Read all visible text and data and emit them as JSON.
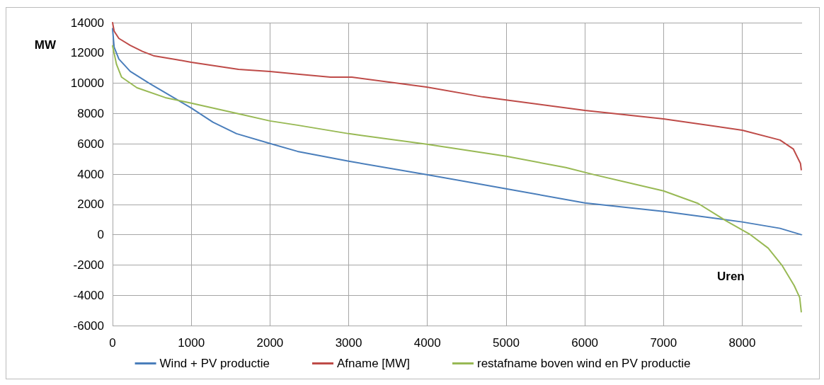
{
  "chart_data": {
    "type": "line",
    "xlabel": "Uren",
    "ylabel": "MW",
    "xlim": [
      0,
      8760
    ],
    "xticks": [
      0,
      1000,
      2000,
      3000,
      4000,
      5000,
      6000,
      7000,
      8000
    ],
    "ylim": [
      -6000,
      14000
    ],
    "yticks": [
      -6000,
      -4000,
      -2000,
      0,
      2000,
      4000,
      6000,
      8000,
      10000,
      12000,
      14000
    ],
    "grid": true,
    "legend": "bottom",
    "marker": "none",
    "line_style": "solid",
    "series": [
      {
        "name": "Wind + PV productie",
        "color": "#4a7ebb",
        "x": [
          0,
          20,
          80,
          225,
          465,
          825,
          1000,
          1275,
          1575,
          2000,
          2350,
          3000,
          3990,
          5000,
          6000,
          7000,
          8000,
          8480,
          8750
        ],
        "values": [
          13600,
          12380,
          11600,
          10780,
          10000,
          8900,
          8360,
          7430,
          6670,
          6020,
          5500,
          4850,
          3970,
          3030,
          2100,
          1540,
          840,
          420,
          0
        ]
      },
      {
        "name": "Afname [MW]",
        "color": "#be4b48",
        "x": [
          0,
          20,
          80,
          225,
          380,
          530,
          825,
          1000,
          1600,
          2000,
          2350,
          2770,
          3040,
          3990,
          4700,
          5000,
          6000,
          7000,
          8000,
          8480,
          8650,
          8740,
          8750
        ],
        "values": [
          14000,
          13440,
          12960,
          12500,
          12100,
          11800,
          11550,
          11380,
          10920,
          10780,
          10600,
          10400,
          10400,
          9750,
          9100,
          8900,
          8210,
          7650,
          6900,
          6250,
          5650,
          4700,
          4290
        ]
      },
      {
        "name": "restafname boven wind en PV productie",
        "color": "#98b954",
        "x": [
          0,
          50,
          115,
          310,
          670,
          1000,
          1600,
          2000,
          2350,
          3000,
          3990,
          5000,
          5760,
          6110,
          7000,
          7440,
          7800,
          8090,
          8330,
          8510,
          8660,
          8730,
          8750
        ],
        "values": [
          12470,
          11250,
          10400,
          9700,
          9050,
          8680,
          7980,
          7510,
          7230,
          6670,
          5970,
          5180,
          4430,
          3970,
          2890,
          2060,
          900,
          50,
          -890,
          -2060,
          -3360,
          -4150,
          -5090
        ]
      }
    ]
  }
}
